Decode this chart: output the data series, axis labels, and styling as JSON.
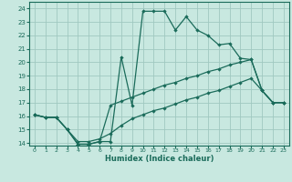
{
  "xlabel": "Humidex (Indice chaleur)",
  "bg_color": "#c8e8e0",
  "grid_color": "#a0c8c0",
  "line_color": "#1a6b5a",
  "xlim": [
    -0.5,
    23.5
  ],
  "ylim": [
    13.8,
    24.5
  ],
  "yticks": [
    14,
    15,
    16,
    17,
    18,
    19,
    20,
    21,
    22,
    23,
    24
  ],
  "xticks": [
    0,
    1,
    2,
    3,
    4,
    5,
    6,
    7,
    8,
    9,
    10,
    11,
    12,
    13,
    14,
    15,
    16,
    17,
    18,
    19,
    20,
    21,
    22,
    23
  ],
  "line1_x": [
    0,
    1,
    2,
    3,
    4,
    5,
    6,
    7,
    8,
    9,
    10,
    11,
    12,
    13,
    14,
    15,
    16,
    17,
    18,
    19,
    20,
    21,
    22,
    23
  ],
  "line1_y": [
    16.1,
    15.9,
    15.9,
    15.0,
    13.9,
    13.9,
    14.1,
    14.1,
    20.4,
    16.8,
    23.8,
    23.8,
    23.8,
    22.4,
    23.4,
    22.4,
    22.0,
    21.3,
    21.4,
    20.3,
    20.2,
    17.9,
    17.0,
    17.0
  ],
  "line2_x": [
    0,
    1,
    2,
    3,
    4,
    5,
    6,
    7,
    8,
    9,
    10,
    11,
    12,
    13,
    14,
    15,
    16,
    17,
    18,
    19,
    20,
    21,
    22,
    23
  ],
  "line2_y": [
    16.1,
    15.9,
    15.9,
    15.0,
    13.9,
    13.9,
    14.1,
    16.8,
    17.1,
    17.4,
    17.7,
    18.0,
    18.3,
    18.5,
    18.8,
    19.0,
    19.3,
    19.5,
    19.8,
    20.0,
    20.2,
    17.9,
    17.0,
    17.0
  ],
  "line3_x": [
    0,
    1,
    2,
    3,
    4,
    5,
    6,
    7,
    8,
    9,
    10,
    11,
    12,
    13,
    14,
    15,
    16,
    17,
    18,
    19,
    20,
    21,
    22,
    23
  ],
  "line3_y": [
    16.1,
    15.9,
    15.9,
    15.0,
    14.1,
    14.1,
    14.3,
    14.7,
    15.3,
    15.8,
    16.1,
    16.4,
    16.6,
    16.9,
    17.2,
    17.4,
    17.7,
    17.9,
    18.2,
    18.5,
    18.8,
    17.9,
    17.0,
    17.0
  ]
}
